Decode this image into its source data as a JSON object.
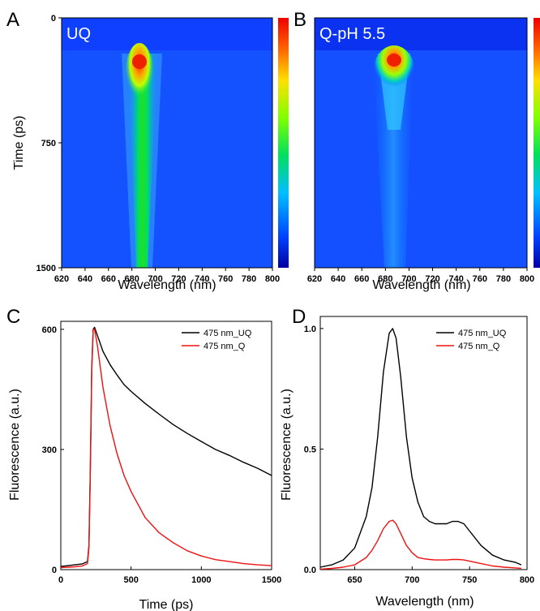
{
  "colors": {
    "black_trace": "#000000",
    "red_trace": "#ee1111"
  },
  "chart_data": [
    {
      "panel": "A",
      "type": "heatmap",
      "label": "UQ",
      "xlabel": "Wavelength (nm)",
      "ylabel": "Time (ps)",
      "xlim": [
        620,
        800
      ],
      "ylim": [
        0,
        1500
      ],
      "y_inverted": true,
      "x_ticks": [
        620,
        640,
        660,
        680,
        700,
        720,
        740,
        760,
        780,
        800
      ],
      "y_ticks": [
        0,
        750,
        1500
      ],
      "peak_wavelength": 684,
      "onset_time": 200,
      "colorbar": "jet"
    },
    {
      "panel": "B",
      "type": "heatmap",
      "label": "Q-pH 5.5",
      "xlabel": "Wavelength (nm)",
      "xlim": [
        620,
        800
      ],
      "ylim": [
        0,
        1500
      ],
      "y_inverted": true,
      "x_ticks": [
        620,
        640,
        660,
        680,
        700,
        720,
        740,
        760,
        780,
        800
      ],
      "peak_wavelength": 684,
      "onset_time": 200,
      "colorbar": "jet"
    },
    {
      "panel": "C",
      "type": "line",
      "xlabel": "Time (ps)",
      "ylabel": "Fluorescence (a.u.)",
      "xlim": [
        0,
        1500
      ],
      "ylim": [
        0,
        620
      ],
      "x_ticks": [
        0,
        500,
        1000,
        1500
      ],
      "y_ticks": [
        0,
        300,
        600
      ],
      "legend_position": "top-right",
      "series": [
        {
          "name": "475 nm_UQ",
          "color": "#000000",
          "x": [
            0,
            50,
            100,
            150,
            190,
            200,
            210,
            220,
            230,
            240,
            260,
            300,
            350,
            400,
            450,
            500,
            600,
            700,
            800,
            900,
            1000,
            1100,
            1200,
            1300,
            1400,
            1500
          ],
          "y": [
            8,
            10,
            12,
            14,
            20,
            60,
            250,
            500,
            600,
            605,
            585,
            545,
            512,
            486,
            462,
            445,
            415,
            388,
            362,
            340,
            320,
            300,
            285,
            268,
            253,
            235
          ]
        },
        {
          "name": "475 nm_Q",
          "color": "#ee1111",
          "x": [
            0,
            50,
            100,
            150,
            190,
            200,
            210,
            220,
            230,
            240,
            260,
            300,
            350,
            400,
            450,
            500,
            600,
            700,
            800,
            900,
            1000,
            1100,
            1200,
            1300,
            1400,
            1500
          ],
          "y": [
            5,
            6,
            7,
            9,
            15,
            55,
            240,
            490,
            600,
            600,
            560,
            455,
            360,
            290,
            235,
            195,
            130,
            92,
            67,
            47,
            34,
            25,
            20,
            15,
            12,
            10
          ]
        }
      ]
    },
    {
      "panel": "D",
      "type": "line",
      "xlabel": "Wavelength (nm)",
      "ylabel": "Fluorescence (a.u.)",
      "xlim": [
        620,
        800
      ],
      "ylim": [
        0,
        1.05
      ],
      "x_ticks": [
        650,
        700,
        750,
        800
      ],
      "y_ticks": [
        0.0,
        0.5,
        1.0
      ],
      "y_tick_labels": [
        "0.0",
        "0.5",
        "1.0"
      ],
      "legend_position": "top-right",
      "series": [
        {
          "name": "475 nm_UQ",
          "color": "#000000",
          "x": [
            620,
            630,
            640,
            650,
            660,
            665,
            670,
            675,
            680,
            683,
            686,
            690,
            695,
            700,
            705,
            710,
            715,
            720,
            725,
            730,
            735,
            740,
            745,
            750,
            760,
            770,
            780,
            790,
            795
          ],
          "y": [
            0.01,
            0.02,
            0.04,
            0.09,
            0.22,
            0.34,
            0.55,
            0.82,
            0.98,
            1.0,
            0.96,
            0.8,
            0.55,
            0.38,
            0.28,
            0.22,
            0.2,
            0.19,
            0.19,
            0.19,
            0.2,
            0.2,
            0.19,
            0.16,
            0.1,
            0.06,
            0.04,
            0.03,
            0.02
          ]
        },
        {
          "name": "475 nm_Q",
          "color": "#ee1111",
          "x": [
            620,
            630,
            640,
            650,
            660,
            665,
            670,
            675,
            680,
            683,
            686,
            690,
            695,
            700,
            705,
            710,
            715,
            720,
            725,
            730,
            735,
            740,
            745,
            750,
            760,
            770,
            780,
            790,
            795
          ],
          "y": [
            0.002,
            0.005,
            0.01,
            0.02,
            0.05,
            0.08,
            0.12,
            0.17,
            0.2,
            0.205,
            0.19,
            0.15,
            0.1,
            0.07,
            0.05,
            0.045,
            0.042,
            0.04,
            0.04,
            0.04,
            0.042,
            0.042,
            0.04,
            0.035,
            0.025,
            0.015,
            0.01,
            0.007,
            0.005
          ]
        }
      ]
    }
  ]
}
